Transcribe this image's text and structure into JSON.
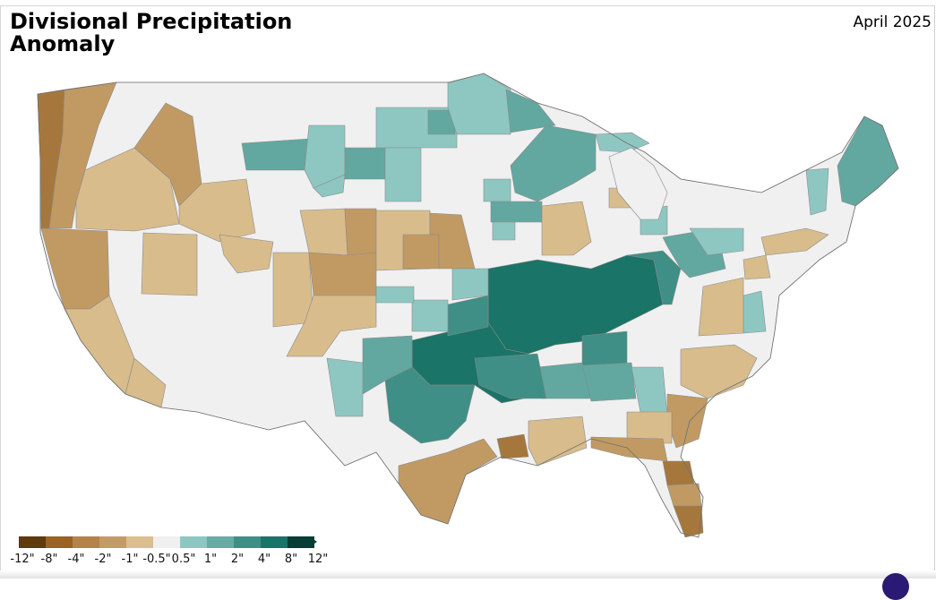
{
  "title": "Divisional Precipitation Anomaly",
  "date": "April 2025",
  "legend": {
    "ticks": [
      "-12\"",
      "-8\"",
      "-4\"",
      "-2\"",
      "-1\"",
      "-0.5\"",
      "0.5\"",
      "1\"",
      "2\"",
      "4\"",
      "8\"",
      "12\""
    ],
    "colors": [
      "#5e3a0c",
      "#9a6223",
      "#b3834a",
      "#c39b67",
      "#dbbe90",
      "#f0f0f0",
      "#8ec7c1",
      "#67aba4",
      "#3f8f86",
      "#1a7467",
      "#073d33"
    ]
  },
  "palette": {
    "dry_strong": "#a6773c",
    "dry_mod": "#c19a63",
    "dry_light": "#d8bc8c",
    "neutral": "#f0f0f0",
    "wet_light": "#8ec7c1",
    "wet_mod": "#62a8a0",
    "wet": "#3f8f86",
    "wet_strong": "#1a7467"
  }
}
